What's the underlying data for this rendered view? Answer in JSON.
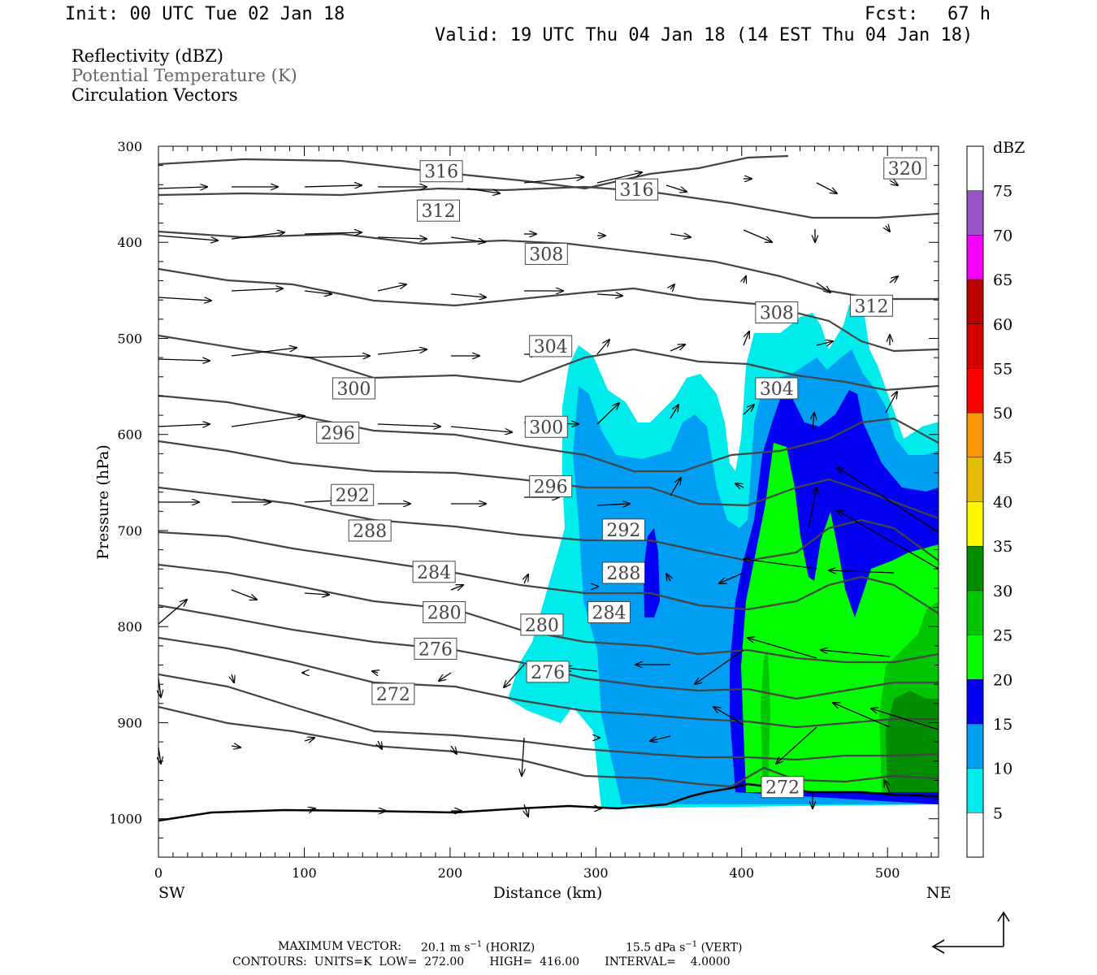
{
  "header": {
    "init": "Init: 00 UTC Tue 02 Jan 18",
    "fcst_label": "Fcst:",
    "fcst_value": "67 h",
    "valid": "Valid: 19 UTC Thu 04 Jan 18 (14 EST Thu 04 Jan 18)"
  },
  "fields": {
    "reflectivity": "Reflectivity (dBZ)",
    "theta": "Potential Temperature (K)",
    "vectors": "Circulation Vectors"
  },
  "footer": {
    "max_vector_label": "MAXIMUM VECTOR:",
    "horiz_value": "20.1",
    "horiz_suffix": "(HORIZ)",
    "vert_value": "15.5",
    "vert_suffix": "(VERT)",
    "contours": "CONTOURS:  UNITS=K  LOW=  272.00       HIGH=  416.00       INTERVAL=    4.0000"
  },
  "colors": {
    "dbz_5": "#00ecec",
    "dbz_10": "#019ff4",
    "dbz_15": "#0300f4",
    "dbz_20": "#02fd02",
    "dbz_25": "#01c501",
    "dbz_30": "#008e00",
    "dbz_35": "#fdf802",
    "dbz_40": "#e5bc00",
    "dbz_45": "#fd9500",
    "dbz_50": "#fd0000",
    "dbz_55": "#d40000",
    "dbz_60": "#bc0000",
    "dbz_65": "#f800fd",
    "dbz_70": "#9855c6",
    "contour": "#444444"
  },
  "chart_data": {
    "type": "heatmap",
    "xlabel": "Distance (km)",
    "ylabel": "Pressure (hPa)",
    "xlim": [
      0,
      535
    ],
    "ylim": [
      1040,
      300
    ],
    "x_ticks": [
      0,
      100,
      200,
      300,
      400,
      500
    ],
    "y_ticks": [
      300,
      400,
      500,
      600,
      700,
      800,
      900,
      1000
    ],
    "x_end_labels": {
      "left": "SW",
      "right": "NE"
    },
    "colorbar": {
      "title": "dBZ",
      "levels": [
        5,
        10,
        15,
        20,
        25,
        30,
        35,
        40,
        45,
        50,
        55,
        60,
        65,
        70,
        75
      ]
    },
    "contour_labels": [
      {
        "value": "316",
        "x": 194,
        "p": 326
      },
      {
        "value": "316",
        "x": 328,
        "p": 345
      },
      {
        "value": "320",
        "x": 512,
        "p": 323
      },
      {
        "value": "312",
        "x": 192,
        "p": 367
      },
      {
        "value": "312",
        "x": 489,
        "p": 466
      },
      {
        "value": "308",
        "x": 266,
        "p": 412
      },
      {
        "value": "308",
        "x": 424,
        "p": 473
      },
      {
        "value": "304",
        "x": 269,
        "p": 508
      },
      {
        "value": "304",
        "x": 424,
        "p": 552
      },
      {
        "value": "300",
        "x": 134,
        "p": 552
      },
      {
        "value": "300",
        "x": 266,
        "p": 592
      },
      {
        "value": "296",
        "x": 123,
        "p": 598
      },
      {
        "value": "296",
        "x": 269,
        "p": 654
      },
      {
        "value": "292",
        "x": 133,
        "p": 663
      },
      {
        "value": "292",
        "x": 319,
        "p": 699
      },
      {
        "value": "288",
        "x": 145,
        "p": 700
      },
      {
        "value": "288",
        "x": 319,
        "p": 744
      },
      {
        "value": "284",
        "x": 189,
        "p": 743
      },
      {
        "value": "284",
        "x": 309,
        "p": 785
      },
      {
        "value": "280",
        "x": 196,
        "p": 785
      },
      {
        "value": "280",
        "x": 263,
        "p": 798
      },
      {
        "value": "276",
        "x": 190,
        "p": 823
      },
      {
        "value": "276",
        "x": 267,
        "p": 847
      },
      {
        "value": "272",
        "x": 161,
        "p": 870
      },
      {
        "value": "272",
        "x": 428,
        "p": 967
      }
    ]
  }
}
